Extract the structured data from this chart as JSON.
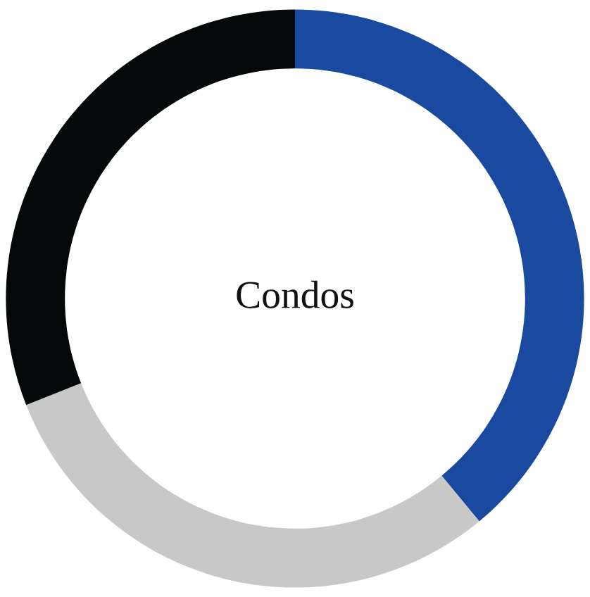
{
  "chart_data": {
    "type": "donut",
    "categories": [
      null,
      null,
      null
    ],
    "values": [
      39,
      30,
      31
    ],
    "colors": [
      "#1a4aa0",
      "#c8c8c8",
      "#050808"
    ],
    "annotations": [
      "Condos"
    ]
  }
}
